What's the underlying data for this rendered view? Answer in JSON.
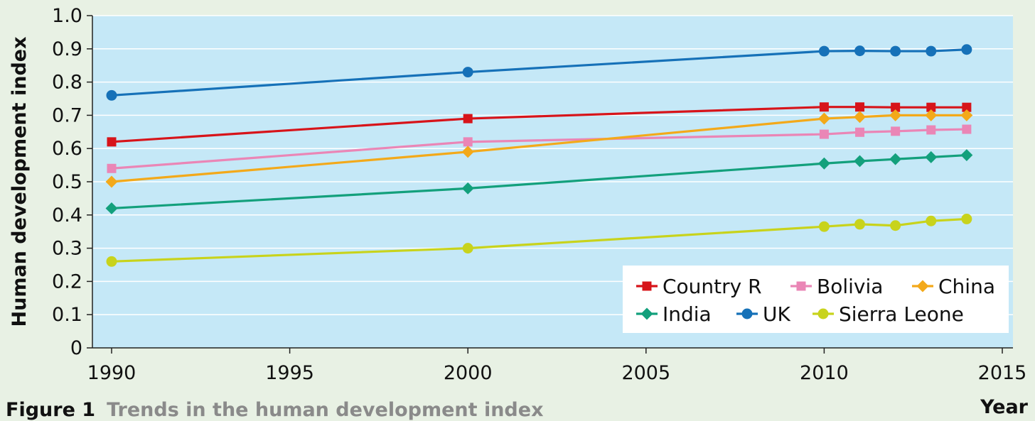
{
  "caption": {
    "number": "Figure 1",
    "title": "Trends in the human development index"
  },
  "chart_data": {
    "type": "line",
    "xlabel": "Year",
    "ylabel": "Human development index",
    "xlim": [
      1990,
      2015
    ],
    "ylim": [
      0,
      1.0
    ],
    "xticks": [
      "1990",
      "1995",
      "2000",
      "2005",
      "2010",
      "2015"
    ],
    "yticks": [
      "0",
      "0.1",
      "0.2",
      "0.3",
      "0.4",
      "0.5",
      "0.6",
      "0.7",
      "0.8",
      "0.9",
      "1.0"
    ],
    "grid": true,
    "legend_position": "bottom-right",
    "series": [
      {
        "name": "Country R",
        "color": "#d7141a",
        "marker": "square",
        "x": [
          1990,
          2000,
          2010,
          2011,
          2012,
          2013,
          2014
        ],
        "y": [
          0.62,
          0.69,
          0.725,
          0.725,
          0.724,
          0.724,
          0.724
        ]
      },
      {
        "name": "Bolivia",
        "color": "#ea86b6",
        "marker": "square",
        "x": [
          1990,
          2000,
          2010,
          2011,
          2012,
          2013,
          2014
        ],
        "y": [
          0.54,
          0.62,
          0.643,
          0.649,
          0.652,
          0.656,
          0.658
        ]
      },
      {
        "name": "China",
        "color": "#f3a91a",
        "marker": "diamond",
        "x": [
          1990,
          2000,
          2010,
          2011,
          2012,
          2013,
          2014
        ],
        "y": [
          0.5,
          0.59,
          0.69,
          0.695,
          0.7,
          0.7,
          0.7
        ]
      },
      {
        "name": "India",
        "color": "#13a07c",
        "marker": "diamond",
        "x": [
          1990,
          2000,
          2010,
          2011,
          2012,
          2013,
          2014
        ],
        "y": [
          0.42,
          0.48,
          0.555,
          0.562,
          0.568,
          0.574,
          0.58
        ]
      },
      {
        "name": "UK",
        "color": "#1671b8",
        "marker": "circle",
        "x": [
          1990,
          2000,
          2010,
          2011,
          2012,
          2013,
          2014
        ],
        "y": [
          0.76,
          0.83,
          0.893,
          0.894,
          0.893,
          0.893,
          0.898
        ]
      },
      {
        "name": "Sierra Leone",
        "color": "#c8d31c",
        "marker": "circle",
        "x": [
          1990,
          2000,
          2010,
          2011,
          2012,
          2013,
          2014
        ],
        "y": [
          0.26,
          0.3,
          0.365,
          0.372,
          0.368,
          0.382,
          0.388
        ]
      }
    ]
  }
}
